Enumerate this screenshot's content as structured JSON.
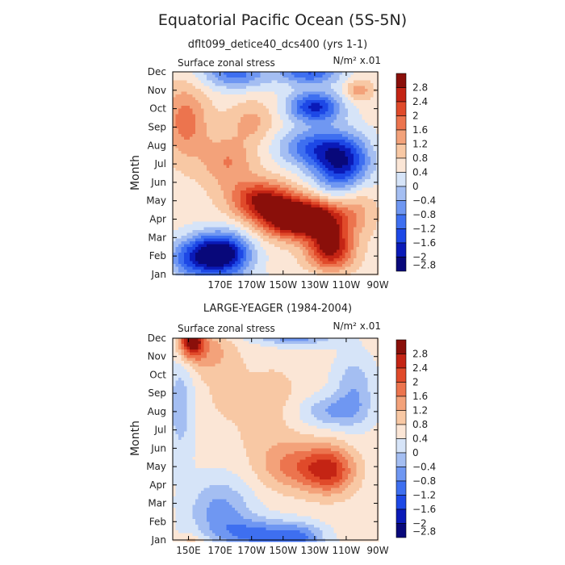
{
  "title": "Equatorial Pacific Ocean (5S-5N)",
  "colors": [
    "#08087a",
    "#0a1ab8",
    "#1d48e6",
    "#3e6ff0",
    "#6f97f2",
    "#a4bef2",
    "#d6e4f8",
    "#fbe6d6",
    "#f8c8a4",
    "#f3a27a",
    "#ec744e",
    "#e04a2a",
    "#c42414",
    "#8a0f0a"
  ],
  "colorbar_labels": [
    "2.8",
    "2.4",
    "2",
    "1.6",
    "1.2",
    "0.8",
    "0.4",
    "0",
    "−0.4",
    "−0.8",
    "−1.2",
    "−1.6",
    "−2",
    "−2.4",
    "−2.8"
  ],
  "chart_data": [
    {
      "type": "heatmap",
      "subtitle": "dflt099_detice40_dcs400 (yrs 1-1)",
      "panel_label": "Surface zonal stress",
      "units": "N/m² x.01",
      "ylabel": "Month",
      "y_ticks": [
        "Jan",
        "Feb",
        "Mar",
        "Apr",
        "May",
        "Jun",
        "Jul",
        "Aug",
        "Sep",
        "Oct",
        "Nov",
        "Dec"
      ],
      "x_ticks": [
        "170E",
        "170W",
        "150W",
        "130W",
        "110W",
        "90W"
      ],
      "x_tick_lons": [
        170,
        190,
        210,
        230,
        250,
        270
      ],
      "xlim": [
        140,
        270
      ],
      "levels": [
        -2.8,
        -2.4,
        -2,
        -1.6,
        -1.2,
        -0.8,
        -0.4,
        0,
        0.4,
        0.8,
        1.2,
        1.6,
        2,
        2.4,
        2.8
      ],
      "features": [
        {
          "lon": 170,
          "month": 1.1,
          "amp": -3.3,
          "slon": 13,
          "smon": 0.8
        },
        {
          "lon": 150,
          "month": 0.8,
          "amp": -1.2,
          "slon": 10,
          "smon": 0.8
        },
        {
          "lon": 227,
          "month": 3.0,
          "amp": 3.0,
          "slon": 17,
          "smon": 0.7
        },
        {
          "lon": 240,
          "month": 1.4,
          "amp": 2.4,
          "slon": 10,
          "smon": 0.8
        },
        {
          "lon": 195,
          "month": 4.1,
          "amp": 1.9,
          "slon": 13,
          "smon": 0.7
        },
        {
          "lon": 210,
          "month": 3.3,
          "amp": 1.4,
          "slon": 13,
          "smon": 0.8
        },
        {
          "lon": 148,
          "month": 8.3,
          "amp": 1.2,
          "slon": 10,
          "smon": 1.4
        },
        {
          "lon": 175,
          "month": 6.1,
          "amp": 1.0,
          "slon": 12,
          "smon": 1.0
        },
        {
          "lon": 190,
          "month": 8.3,
          "amp": 0.7,
          "slon": 10,
          "smon": 0.8
        },
        {
          "lon": 247,
          "month": 6.1,
          "amp": -2.6,
          "slon": 13,
          "smon": 1.1
        },
        {
          "lon": 225,
          "month": 6.9,
          "amp": -1.4,
          "slon": 14,
          "smon": 0.7
        },
        {
          "lon": 230,
          "month": 9.1,
          "amp": -2.3,
          "slon": 12,
          "smon": 0.6
        },
        {
          "lon": 180,
          "month": 10.9,
          "amp": -1.5,
          "slon": 15,
          "smon": 0.6
        },
        {
          "lon": 227,
          "month": 11.0,
          "amp": -1.8,
          "slon": 14,
          "smon": 0.5
        },
        {
          "lon": 258,
          "month": 10.0,
          "amp": 0.9,
          "slon": 6,
          "smon": 0.4
        },
        {
          "lon": 258,
          "month": 4.0,
          "amp": 0.5,
          "slon": 8,
          "smon": 1.0
        }
      ],
      "base": 0.2
    },
    {
      "type": "heatmap",
      "subtitle": "LARGE-YEAGER (1984-2004)",
      "panel_label": "Surface zonal stress",
      "units": "N/m² x.01",
      "ylabel": "Month",
      "y_ticks": [
        "Jan",
        "Feb",
        "Mar",
        "Apr",
        "May",
        "Jun",
        "Jul",
        "Aug",
        "Sep",
        "Oct",
        "Nov",
        "Dec"
      ],
      "x_ticks": [
        "150E",
        "170E",
        "170W",
        "150W",
        "130W",
        "110W",
        "90W"
      ],
      "x_tick_lons": [
        150,
        170,
        190,
        210,
        230,
        250,
        270
      ],
      "xlim": [
        140,
        270
      ],
      "levels": [
        -2.8,
        -2.4,
        -2,
        -1.6,
        -1.2,
        -0.8,
        -0.4,
        0,
        0.4,
        0.8,
        1.2,
        1.6,
        2,
        2.4,
        2.8
      ],
      "features": [
        {
          "lon": 152,
          "month": 10.9,
          "amp": 2.6,
          "slon": 5,
          "smon": 0.6
        },
        {
          "lon": 160,
          "month": 10.4,
          "amp": 0.9,
          "slon": 12,
          "smon": 0.9
        },
        {
          "lon": 240,
          "month": 3.8,
          "amp": 1.7,
          "slon": 11,
          "smon": 0.9
        },
        {
          "lon": 218,
          "month": 4.0,
          "amp": 1.2,
          "slon": 16,
          "smon": 0.9
        },
        {
          "lon": 200,
          "month": 5.6,
          "amp": 0.3,
          "slon": 14,
          "smon": 0.9
        },
        {
          "lon": 170,
          "month": 1.6,
          "amp": -1.1,
          "slon": 14,
          "smon": 1.2
        },
        {
          "lon": 195,
          "month": 0.3,
          "amp": -1.4,
          "slon": 18,
          "smon": 0.6
        },
        {
          "lon": 222,
          "month": 0.2,
          "amp": -1.0,
          "slon": 10,
          "smon": 0.5
        },
        {
          "lon": 218,
          "month": 11.2,
          "amp": -1.3,
          "slon": 17,
          "smon": 0.4
        },
        {
          "lon": 240,
          "month": 7.0,
          "amp": -0.9,
          "slon": 14,
          "smon": 0.6
        },
        {
          "lon": 255,
          "month": 8.2,
          "amp": -0.9,
          "slon": 9,
          "smon": 1.3
        },
        {
          "lon": 145,
          "month": 7.4,
          "amp": -0.8,
          "slon": 6,
          "smon": 2.2
        },
        {
          "lon": 175,
          "month": 8.1,
          "amp": 0.35,
          "slon": 12,
          "smon": 1.5
        },
        {
          "lon": 205,
          "month": 8.0,
          "amp": 0.4,
          "slon": 12,
          "smon": 1.2
        }
      ],
      "base": 0.15
    }
  ]
}
